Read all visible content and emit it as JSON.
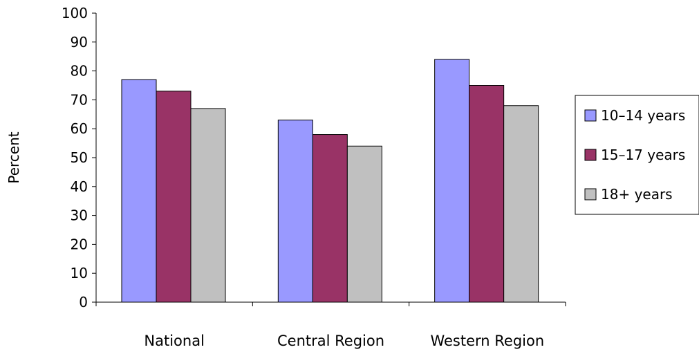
{
  "chart_data": {
    "type": "bar",
    "title": "",
    "xlabel": "",
    "ylabel": "Percent",
    "ylim": [
      0,
      100
    ],
    "yticks": [
      "0",
      "10",
      "20",
      "30",
      "40",
      "50",
      "60",
      "70",
      "80",
      "90",
      "100"
    ],
    "categories": [
      "National",
      "Central Region",
      "Western Region"
    ],
    "series": [
      {
        "name": "10–14 years",
        "color": "#9999ff",
        "values": [
          77,
          63,
          84
        ]
      },
      {
        "name": "15–17 years",
        "color": "#993366",
        "values": [
          73,
          58,
          75
        ]
      },
      {
        "name": "18+ years",
        "color": "#c0c0c0",
        "values": [
          67,
          54,
          68
        ]
      }
    ],
    "grid": false,
    "legend_position": "right"
  }
}
